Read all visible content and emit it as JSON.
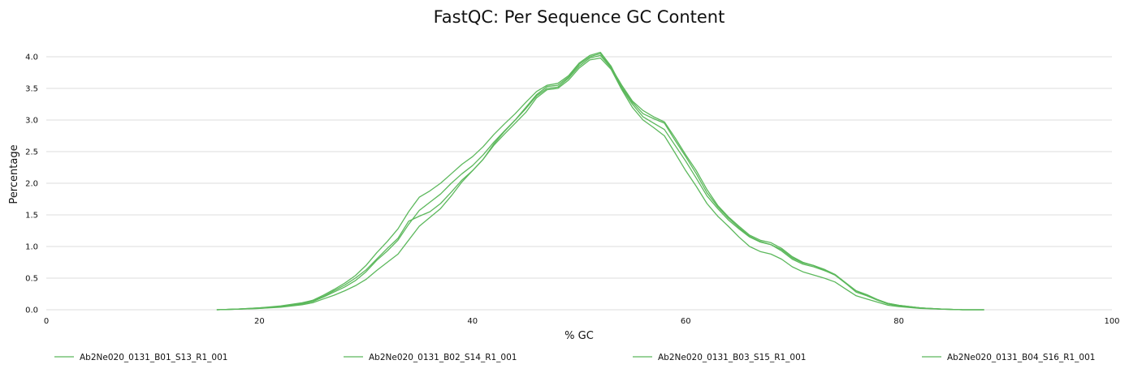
{
  "chart_data": {
    "type": "line",
    "title": "FastQC: Per Sequence GC Content",
    "xlabel": "% GC",
    "ylabel": "Percentage",
    "xlim": [
      0,
      100
    ],
    "ylim": [
      0,
      4.0
    ],
    "x_ticks": [
      0,
      20,
      40,
      60,
      80,
      100
    ],
    "y_ticks": [
      0.0,
      0.5,
      1.0,
      1.5,
      2.0,
      2.5,
      3.0,
      3.5,
      4.0
    ],
    "grid": true,
    "legend_position": "bottom",
    "line_color": "#5cb85c",
    "x": [
      16,
      18,
      20,
      22,
      24,
      25,
      26,
      27,
      28,
      29,
      30,
      31,
      32,
      33,
      34,
      35,
      36,
      37,
      38,
      39,
      40,
      41,
      42,
      43,
      44,
      45,
      46,
      47,
      48,
      49,
      50,
      51,
      52,
      53,
      54,
      55,
      56,
      57,
      58,
      59,
      60,
      61,
      62,
      63,
      64,
      65,
      66,
      67,
      68,
      69,
      70,
      71,
      72,
      73,
      74,
      75,
      76,
      77,
      78,
      79,
      80,
      82,
      84,
      86,
      88
    ],
    "series": [
      {
        "name": "Ab2Ne020_0131_B01_S13_R1_001",
        "values": [
          0.0,
          0.01,
          0.03,
          0.06,
          0.11,
          0.15,
          0.23,
          0.32,
          0.42,
          0.54,
          0.7,
          0.9,
          1.08,
          1.28,
          1.55,
          1.78,
          1.88,
          2.0,
          2.15,
          2.3,
          2.42,
          2.58,
          2.77,
          2.94,
          3.1,
          3.28,
          3.45,
          3.55,
          3.58,
          3.7,
          3.9,
          4.02,
          4.07,
          3.85,
          3.52,
          3.28,
          3.1,
          3.02,
          2.95,
          2.68,
          2.42,
          2.15,
          1.85,
          1.63,
          1.45,
          1.3,
          1.16,
          1.08,
          1.03,
          0.93,
          0.8,
          0.72,
          0.68,
          0.62,
          0.55,
          0.42,
          0.28,
          0.22,
          0.15,
          0.09,
          0.06,
          0.03,
          0.01,
          0.0,
          0.0
        ]
      },
      {
        "name": "Ab2Ne020_0131_B02_S14_R1_001",
        "values": [
          0.0,
          0.01,
          0.02,
          0.05,
          0.09,
          0.13,
          0.2,
          0.28,
          0.36,
          0.46,
          0.6,
          0.78,
          0.93,
          1.1,
          1.35,
          1.57,
          1.7,
          1.83,
          2.0,
          2.15,
          2.28,
          2.45,
          2.65,
          2.83,
          3.0,
          3.18,
          3.38,
          3.5,
          3.52,
          3.66,
          3.85,
          3.98,
          4.02,
          3.82,
          3.5,
          3.25,
          3.05,
          2.95,
          2.85,
          2.6,
          2.35,
          2.08,
          1.8,
          1.6,
          1.42,
          1.28,
          1.15,
          1.07,
          1.03,
          0.95,
          0.82,
          0.74,
          0.7,
          0.64,
          0.56,
          0.43,
          0.3,
          0.23,
          0.16,
          0.1,
          0.07,
          0.03,
          0.01,
          0.0,
          0.0
        ]
      },
      {
        "name": "Ab2Ne020_0131_B03_S15_R1_001",
        "values": [
          0.0,
          0.01,
          0.02,
          0.04,
          0.08,
          0.11,
          0.17,
          0.23,
          0.3,
          0.38,
          0.48,
          0.62,
          0.75,
          0.88,
          1.1,
          1.32,
          1.46,
          1.6,
          1.8,
          2.02,
          2.2,
          2.38,
          2.6,
          2.78,
          2.95,
          3.12,
          3.35,
          3.48,
          3.5,
          3.63,
          3.82,
          3.95,
          3.98,
          3.8,
          3.48,
          3.2,
          3.0,
          2.88,
          2.75,
          2.48,
          2.2,
          1.95,
          1.68,
          1.48,
          1.32,
          1.15,
          1.0,
          0.92,
          0.88,
          0.8,
          0.68,
          0.6,
          0.55,
          0.5,
          0.44,
          0.33,
          0.22,
          0.17,
          0.12,
          0.07,
          0.05,
          0.02,
          0.01,
          0.0,
          0.0
        ]
      },
      {
        "name": "Ab2Ne020_0131_B04_S16_R1_001",
        "values": [
          0.0,
          0.01,
          0.03,
          0.05,
          0.1,
          0.14,
          0.21,
          0.3,
          0.39,
          0.5,
          0.63,
          0.8,
          0.97,
          1.13,
          1.4,
          1.48,
          1.55,
          1.68,
          1.86,
          2.05,
          2.2,
          2.38,
          2.62,
          2.82,
          3.0,
          3.2,
          3.4,
          3.53,
          3.55,
          3.68,
          3.88,
          4.0,
          4.05,
          3.83,
          3.55,
          3.3,
          3.15,
          3.05,
          2.97,
          2.72,
          2.45,
          2.2,
          1.9,
          1.65,
          1.47,
          1.32,
          1.18,
          1.1,
          1.06,
          0.97,
          0.84,
          0.75,
          0.7,
          0.63,
          0.55,
          0.42,
          0.3,
          0.24,
          0.16,
          0.1,
          0.07,
          0.03,
          0.01,
          0.0,
          0.0
        ]
      }
    ]
  }
}
